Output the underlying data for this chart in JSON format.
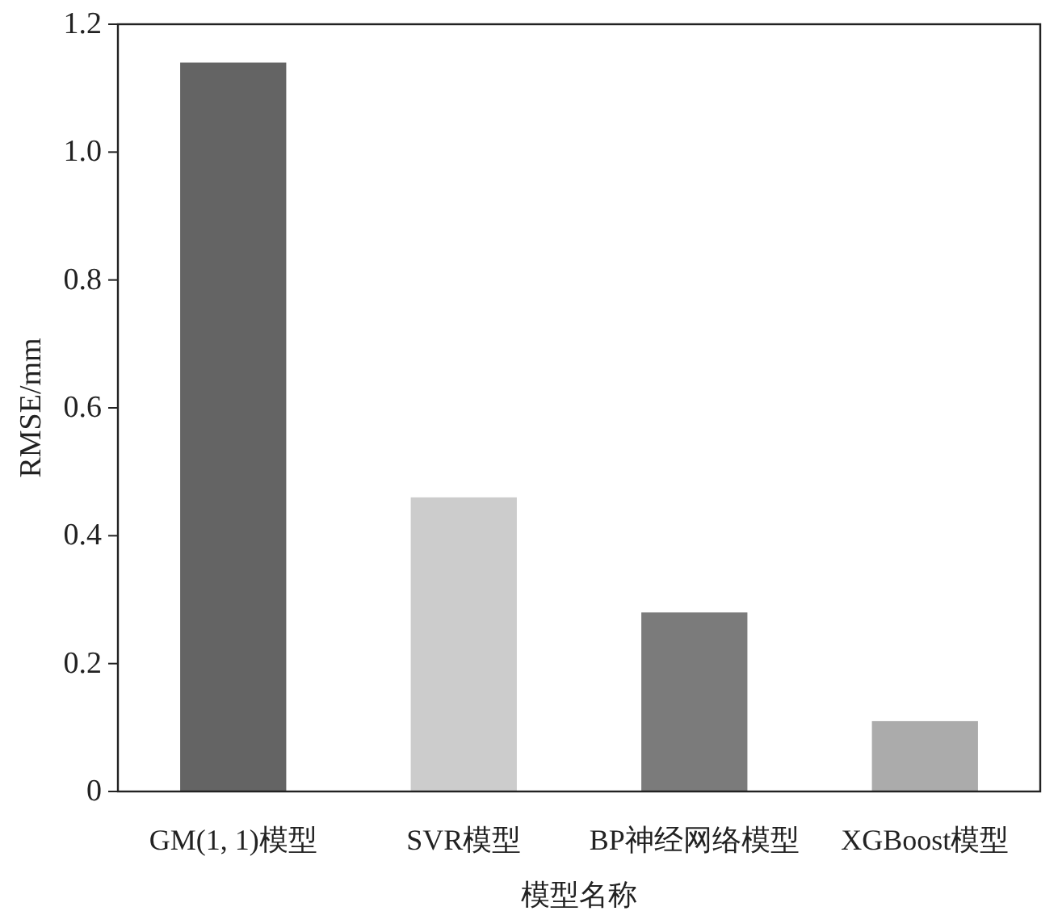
{
  "chart_data": {
    "type": "bar",
    "xlabel": "模型名称",
    "ylabel": "RMSE/mm",
    "categories": [
      "GM(1, 1)模型",
      "SVR模型",
      "BP神经网络模型",
      "XGBoost模型"
    ],
    "values": [
      1.14,
      0.46,
      0.28,
      0.11
    ],
    "colors": [
      "#646464",
      "#cccccc",
      "#7b7b7b",
      "#ababab"
    ],
    "ylim": [
      0,
      1.2
    ],
    "yticks": [
      0,
      {
        "value": 0.2,
        "label": "0.2"
      },
      {
        "value": 0.4,
        "label": "0.4"
      },
      {
        "value": 0.6,
        "label": "0.6"
      },
      {
        "value": 0.8,
        "label": "0.8"
      },
      {
        "value": 1.0,
        "label": "1.0"
      },
      {
        "value": 1.2,
        "label": "1.2"
      }
    ],
    "grid": false
  }
}
